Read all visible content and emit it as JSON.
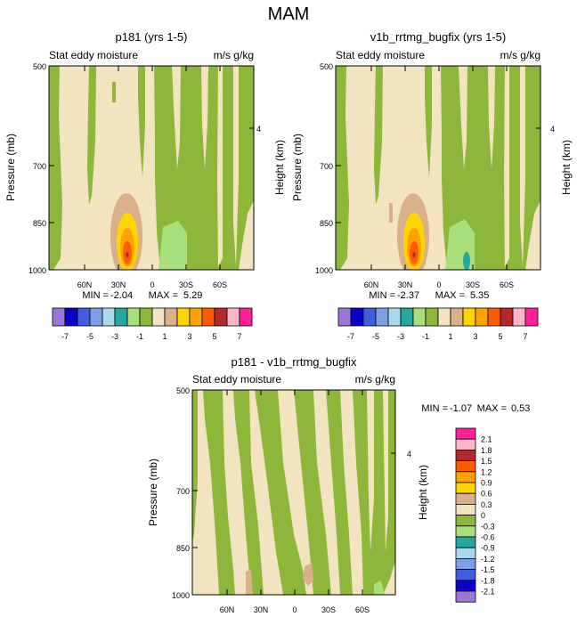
{
  "page_title": "MAM",
  "colors": {
    "palette": [
      "#9b76d6",
      "#0b00c9",
      "#3f5fe0",
      "#7f9ee6",
      "#a9d9ec",
      "#26a8a0",
      "#a7e07a",
      "#8cb73a",
      "#f4e3c0",
      "#d8b08a",
      "#ffd500",
      "#ffa200",
      "#ff5a00",
      "#b02a2a",
      "#ffb5c8",
      "#ff1f9a"
    ]
  },
  "chart_data": [
    {
      "type": "contour",
      "title": "p181 (yrs 1-5)",
      "left_subtitle": "Stat eddy moisture",
      "right_subtitle": "m/s g/kg",
      "ylabel": "Pressure (mb)",
      "ylabel_right": "Height (km)",
      "y_ticks": [
        "500",
        "700",
        "850",
        "1000"
      ],
      "y_ticks_right": [
        "4"
      ],
      "x_ticks": [
        "60N",
        "30N",
        "0",
        "30S",
        "60S"
      ],
      "stats": {
        "min_label": "MIN = ",
        "min": "-2.04",
        "max_label": "MAX = ",
        "max": "5.29"
      },
      "colorbar_ticks": [
        "-7",
        "-5",
        "-3",
        "-1",
        "1",
        "3",
        "5",
        "7"
      ]
    },
    {
      "type": "contour",
      "title": "v1b_rrtmg_bugfix (yrs 1-5)",
      "left_subtitle": "Stat eddy moisture",
      "right_subtitle": "m/s g/kg",
      "ylabel": "Pressure (mb)",
      "ylabel_right": "Height (km)",
      "y_ticks": [
        "500",
        "700",
        "850",
        "1000"
      ],
      "y_ticks_right": [
        "4"
      ],
      "x_ticks": [
        "60N",
        "30N",
        "0",
        "30S",
        "60S"
      ],
      "stats": {
        "min_label": "MIN = ",
        "min": "-2.37",
        "max_label": "MAX = ",
        "max": "5.35"
      },
      "colorbar_ticks": [
        "-7",
        "-5",
        "-3",
        "-1",
        "1",
        "3",
        "5",
        "7"
      ]
    },
    {
      "type": "contour",
      "title": "p181 - v1b_rrtmg_bugfix",
      "left_subtitle": "Stat eddy moisture",
      "right_subtitle": "m/s g/kg",
      "ylabel": "Pressure (mb)",
      "ylabel_right": "Height (km)",
      "y_ticks": [
        "500",
        "700",
        "850",
        "1000"
      ],
      "y_ticks_right": [
        "4"
      ],
      "x_ticks": [
        "60N",
        "30N",
        "0",
        "30S",
        "60S"
      ],
      "stats": {
        "min_label": "MIN = ",
        "min": "-1.07",
        "max_label": "MAX = ",
        "max": "0.53"
      },
      "colorbar_ticks": [
        "2.1",
        "1.8",
        "1.5",
        "1.2",
        "0.9",
        "0.6",
        "0.3",
        "0",
        "-0.3",
        "-0.6",
        "-0.9",
        "-1.2",
        "-1.5",
        "-1.8",
        "-2.1"
      ]
    }
  ]
}
